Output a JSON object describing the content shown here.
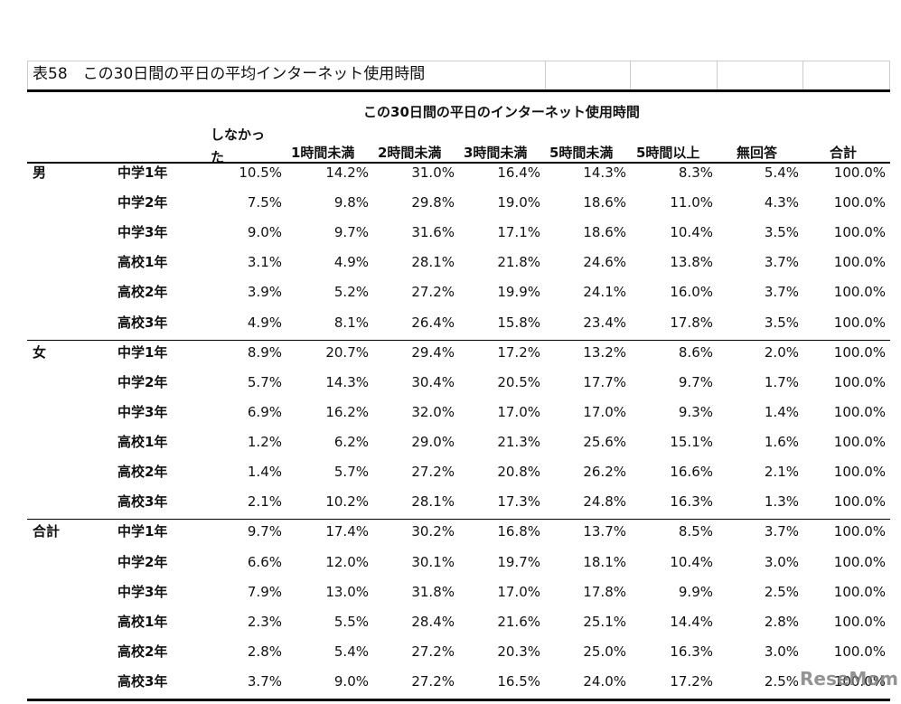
{
  "title": "表58　この30日間の平日の平均インターネット使用時間",
  "header": {
    "group_title": "この30日間の平日のインターネット使用時間",
    "columns": [
      "しなかった",
      "1時間未満",
      "2時間未満",
      "3時間未満",
      "5時間未満",
      "5時間以上",
      "無回答",
      "合計"
    ]
  },
  "groups": [
    {
      "label": "男",
      "rows": [
        {
          "label": "中学1年",
          "values": [
            "10.5%",
            "14.2%",
            "31.0%",
            "16.4%",
            "14.3%",
            "8.3%",
            "5.4%",
            "100.0%"
          ]
        },
        {
          "label": "中学2年",
          "values": [
            "7.5%",
            "9.8%",
            "29.8%",
            "19.0%",
            "18.6%",
            "11.0%",
            "4.3%",
            "100.0%"
          ]
        },
        {
          "label": "中学3年",
          "values": [
            "9.0%",
            "9.7%",
            "31.6%",
            "17.1%",
            "18.6%",
            "10.4%",
            "3.5%",
            "100.0%"
          ]
        },
        {
          "label": "高校1年",
          "values": [
            "3.1%",
            "4.9%",
            "28.1%",
            "21.8%",
            "24.6%",
            "13.8%",
            "3.7%",
            "100.0%"
          ]
        },
        {
          "label": "高校2年",
          "values": [
            "3.9%",
            "5.2%",
            "27.2%",
            "19.9%",
            "24.1%",
            "16.0%",
            "3.7%",
            "100.0%"
          ]
        },
        {
          "label": "高校3年",
          "values": [
            "4.9%",
            "8.1%",
            "26.4%",
            "15.8%",
            "23.4%",
            "17.8%",
            "3.5%",
            "100.0%"
          ]
        }
      ]
    },
    {
      "label": "女",
      "rows": [
        {
          "label": "中学1年",
          "values": [
            "8.9%",
            "20.7%",
            "29.4%",
            "17.2%",
            "13.2%",
            "8.6%",
            "2.0%",
            "100.0%"
          ]
        },
        {
          "label": "中学2年",
          "values": [
            "5.7%",
            "14.3%",
            "30.4%",
            "20.5%",
            "17.7%",
            "9.7%",
            "1.7%",
            "100.0%"
          ]
        },
        {
          "label": "中学3年",
          "values": [
            "6.9%",
            "16.2%",
            "32.0%",
            "17.0%",
            "17.0%",
            "9.3%",
            "1.4%",
            "100.0%"
          ]
        },
        {
          "label": "高校1年",
          "values": [
            "1.2%",
            "6.2%",
            "29.0%",
            "21.3%",
            "25.6%",
            "15.1%",
            "1.6%",
            "100.0%"
          ]
        },
        {
          "label": "高校2年",
          "values": [
            "1.4%",
            "5.7%",
            "27.2%",
            "20.8%",
            "26.2%",
            "16.6%",
            "2.1%",
            "100.0%"
          ]
        },
        {
          "label": "高校3年",
          "values": [
            "2.1%",
            "10.2%",
            "28.1%",
            "17.3%",
            "24.8%",
            "16.3%",
            "1.3%",
            "100.0%"
          ]
        }
      ]
    },
    {
      "label": "合計",
      "rows": [
        {
          "label": "中学1年",
          "values": [
            "9.7%",
            "17.4%",
            "30.2%",
            "16.8%",
            "13.7%",
            "8.5%",
            "3.7%",
            "100.0%"
          ]
        },
        {
          "label": "中学2年",
          "values": [
            "6.6%",
            "12.0%",
            "30.1%",
            "19.7%",
            "18.1%",
            "10.4%",
            "3.0%",
            "100.0%"
          ]
        },
        {
          "label": "中学3年",
          "values": [
            "7.9%",
            "13.0%",
            "31.8%",
            "17.0%",
            "17.8%",
            "9.9%",
            "2.5%",
            "100.0%"
          ]
        },
        {
          "label": "高校1年",
          "values": [
            "2.3%",
            "5.5%",
            "28.4%",
            "21.6%",
            "25.1%",
            "14.4%",
            "2.8%",
            "100.0%"
          ]
        },
        {
          "label": "高校2年",
          "values": [
            "2.8%",
            "5.4%",
            "27.2%",
            "20.3%",
            "25.0%",
            "16.3%",
            "3.0%",
            "100.0%"
          ]
        },
        {
          "label": "高校3年",
          "values": [
            "3.7%",
            "9.0%",
            "27.2%",
            "16.5%",
            "24.0%",
            "17.2%",
            "2.5%",
            "100.0%"
          ]
        }
      ]
    }
  ],
  "watermark": "ReseMom"
}
